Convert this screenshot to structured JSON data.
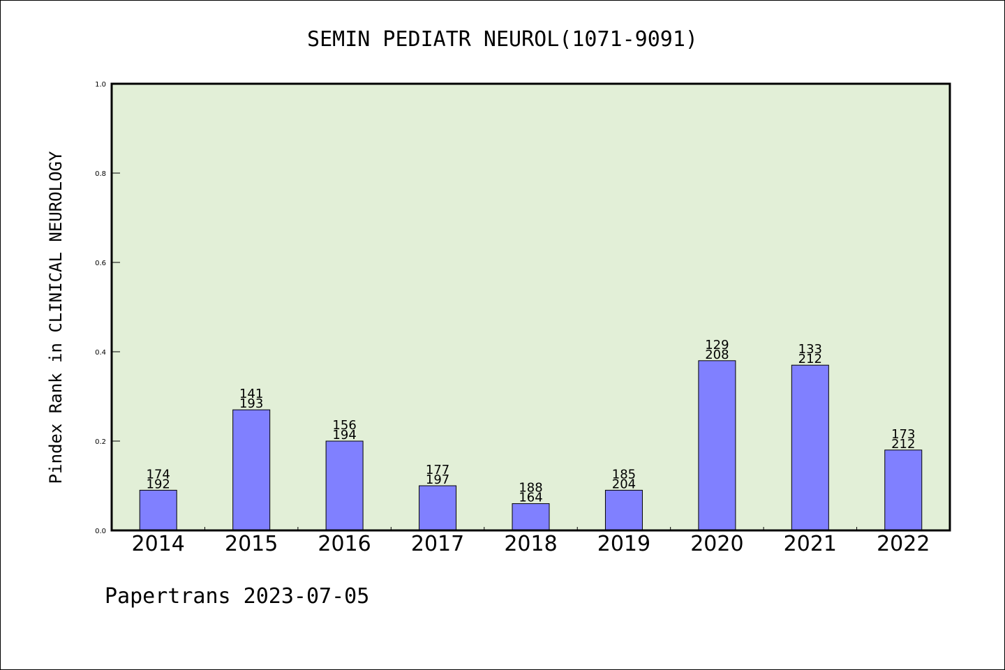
{
  "chart_data": {
    "type": "bar",
    "title": "SEMIN PEDIATR NEUROL(1071-9091)",
    "xlabel": "",
    "ylabel": "Pindex Rank in CLINICAL NEUROLOGY",
    "ylim": [
      0,
      1.0
    ],
    "yticks": [
      "0.0",
      "0.2",
      "0.4",
      "0.6",
      "0.8",
      "1.0"
    ],
    "categories": [
      "2014",
      "2015",
      "2016",
      "2017",
      "2018",
      "2019",
      "2020",
      "2021",
      "2022"
    ],
    "values": [
      0.09,
      0.27,
      0.2,
      0.1,
      0.06,
      0.09,
      0.38,
      0.37,
      0.18
    ],
    "label_top": [
      "174",
      "141",
      "156",
      "177",
      "188",
      "185",
      "129",
      "133",
      "173"
    ],
    "label_bottom": [
      "192",
      "193",
      "194",
      "197",
      "164",
      "204",
      "208",
      "212",
      "212"
    ],
    "bar_color": "#8080ff",
    "plot_background": "#e2efd7",
    "grid": false,
    "legend": "none"
  },
  "footer": {
    "text": "Papertrans 2023-07-05"
  }
}
